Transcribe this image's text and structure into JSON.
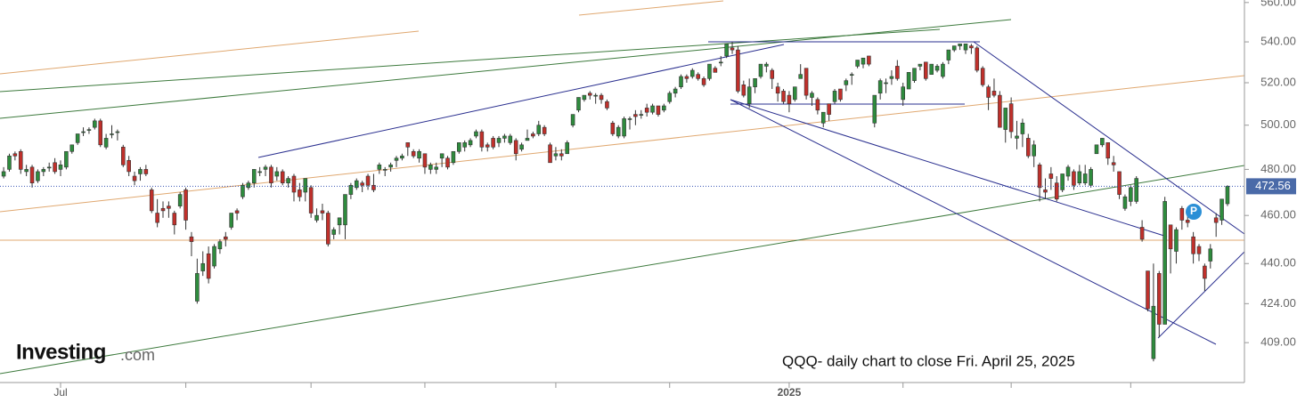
{
  "chart_data": {
    "type": "candlestick",
    "log_scale": true,
    "grid": false,
    "up_color": "#2e8b3d",
    "down_color": "#c0302b",
    "xlim": [
      -0.64,
      217.98
    ],
    "xticks": [
      {
        "value": 10,
        "label": "Jul"
      },
      32,
      54,
      74,
      97,
      117,
      {
        "value": 138,
        "label": "2025"
      },
      158,
      177,
      198
    ],
    "ylim": [
      394.2,
      561.3
    ],
    "yticks": [
      {
        "value": 560,
        "label": "560.00"
      },
      {
        "value": 540,
        "label": "540.00"
      },
      {
        "value": 520,
        "label": "520.00"
      },
      {
        "value": 500,
        "label": "500.00"
      },
      {
        "value": 480,
        "label": "480.00"
      },
      {
        "value": 460,
        "label": "460.00"
      },
      {
        "value": 440,
        "label": "440.00"
      },
      {
        "value": 424,
        "label": "424.00"
      },
      {
        "value": 409,
        "label": "409.00"
      }
    ],
    "last_price": 472.56,
    "annotation": "QQQ- daily chart to close Fri. April 25, 2025",
    "marker_label": "P",
    "brand": {
      "name": "Investing",
      "suffix": ".com"
    },
    "candles": [
      [
        477,
        481,
        476,
        479
      ],
      [
        480,
        487,
        479,
        486
      ],
      [
        487,
        488,
        484,
        486
      ],
      [
        488,
        489,
        478,
        480
      ],
      [
        479,
        482,
        477,
        480
      ],
      [
        481,
        482,
        472,
        474
      ],
      [
        475,
        480,
        474,
        479
      ],
      [
        479,
        481,
        477,
        480
      ],
      [
        481,
        483,
        479,
        481
      ],
      [
        483,
        485,
        478,
        479
      ],
      [
        480,
        484,
        477,
        482
      ],
      [
        481,
        488,
        480,
        488
      ],
      [
        488,
        491,
        487,
        491
      ],
      [
        492,
        496,
        491,
        496
      ],
      [
        497,
        499,
        495,
        497
      ],
      [
        498,
        499,
        496,
        498
      ],
      [
        499,
        503,
        498,
        502
      ],
      [
        502,
        503,
        490,
        491
      ],
      [
        490,
        496,
        489,
        494
      ],
      [
        496,
        500,
        494,
        496
      ],
      [
        497,
        498,
        493,
        497
      ],
      [
        490,
        491,
        481,
        482
      ],
      [
        484,
        486,
        477,
        479
      ],
      [
        477,
        479,
        473,
        475
      ],
      [
        478,
        481,
        475,
        480
      ],
      [
        480,
        482,
        477,
        478
      ],
      [
        471,
        472,
        461,
        462
      ],
      [
        461,
        467,
        455,
        457
      ],
      [
        463,
        466,
        459,
        462
      ],
      [
        464,
        466,
        459,
        463
      ],
      [
        461,
        462,
        452,
        456
      ],
      [
        464,
        470,
        463,
        469
      ],
      [
        471,
        472,
        454,
        458
      ],
      [
        451,
        453,
        443,
        449
      ],
      [
        425,
        442,
        424,
        436
      ],
      [
        437,
        445,
        435,
        440
      ],
      [
        444,
        447,
        432,
        434
      ],
      [
        439,
        448,
        438,
        447
      ],
      [
        446,
        450,
        444,
        449
      ],
      [
        451,
        453,
        447,
        450
      ],
      [
        455,
        461,
        454,
        461
      ],
      [
        462,
        463,
        458,
        461
      ],
      [
        468,
        474,
        467,
        473
      ],
      [
        472,
        475,
        471,
        474
      ],
      [
        474,
        480,
        472,
        480
      ],
      [
        479,
        481,
        477,
        479
      ],
      [
        480,
        482,
        477,
        481
      ],
      [
        481,
        482,
        472,
        474
      ],
      [
        477,
        481,
        475,
        479
      ],
      [
        479,
        480,
        473,
        474
      ],
      [
        474,
        477,
        472,
        476
      ],
      [
        477,
        478,
        466,
        470
      ],
      [
        471,
        474,
        466,
        468
      ],
      [
        470,
        476,
        466,
        476
      ],
      [
        472,
        473,
        459,
        461
      ],
      [
        458,
        463,
        457,
        460
      ],
      [
        462,
        465,
        458,
        461
      ],
      [
        461,
        462,
        447,
        448
      ],
      [
        452,
        455,
        450,
        454
      ],
      [
        456,
        459,
        452,
        459
      ],
      [
        456,
        469,
        450,
        469
      ],
      [
        469,
        474,
        467,
        473
      ],
      [
        472,
        476,
        471,
        475
      ],
      [
        474,
        475,
        470,
        473
      ],
      [
        477,
        478,
        471,
        473
      ],
      [
        473,
        478,
        470,
        471
      ],
      [
        480,
        483,
        478,
        482
      ],
      [
        480,
        481,
        477,
        480
      ],
      [
        481,
        483,
        479,
        482
      ],
      [
        484,
        486,
        481,
        485
      ],
      [
        485,
        487,
        484,
        486
      ],
      [
        492,
        492,
        486,
        490
      ],
      [
        488,
        489,
        485,
        486
      ],
      [
        485,
        489,
        483,
        488
      ],
      [
        487,
        487,
        478,
        481
      ],
      [
        480,
        483,
        478,
        482
      ],
      [
        480,
        483,
        478,
        481
      ],
      [
        485,
        487,
        481,
        487
      ],
      [
        485,
        486,
        480,
        481
      ],
      [
        483,
        488,
        482,
        488
      ],
      [
        488,
        492,
        487,
        492
      ],
      [
        490,
        493,
        488,
        492
      ],
      [
        491,
        494,
        490,
        493
      ],
      [
        495,
        498,
        494,
        497
      ],
      [
        497,
        498,
        488,
        490
      ],
      [
        491,
        492,
        488,
        490
      ],
      [
        494,
        495,
        489,
        490
      ],
      [
        492,
        495,
        490,
        494
      ],
      [
        494,
        496,
        492,
        495
      ],
      [
        492,
        496,
        491,
        495
      ],
      [
        493,
        494,
        484,
        487
      ],
      [
        489,
        492,
        488,
        491
      ],
      [
        493,
        498,
        493,
        494
      ],
      [
        496,
        497,
        494,
        495
      ],
      [
        496,
        502,
        495,
        500
      ],
      [
        499,
        500,
        495,
        496
      ],
      [
        491,
        492,
        483,
        483
      ],
      [
        486,
        490,
        484,
        487
      ],
      [
        487,
        489,
        484,
        486
      ],
      [
        487,
        493,
        487,
        492
      ],
      [
        500,
        505,
        499,
        505
      ],
      [
        507,
        513,
        506,
        513
      ],
      [
        512,
        514,
        511,
        514
      ],
      [
        515,
        516,
        512,
        514
      ],
      [
        514,
        515,
        510,
        514
      ],
      [
        514,
        515,
        510,
        512
      ],
      [
        511,
        512,
        507,
        508
      ],
      [
        501,
        502,
        495,
        496
      ],
      [
        495,
        500,
        494,
        499
      ],
      [
        495,
        504,
        494,
        503
      ],
      [
        503,
        504,
        498,
        503
      ],
      [
        505,
        507,
        500,
        504
      ],
      [
        505,
        507,
        503,
        505
      ],
      [
        508,
        510,
        504,
        506
      ],
      [
        506,
        510,
        505,
        509
      ],
      [
        509,
        509,
        504,
        505
      ],
      [
        507,
        510,
        506,
        509
      ],
      [
        511,
        516,
        510,
        515
      ],
      [
        515,
        518,
        513,
        517
      ],
      [
        518,
        524,
        517,
        523
      ],
      [
        523,
        524,
        520,
        522
      ],
      [
        523,
        527,
        522,
        526
      ],
      [
        524,
        525,
        521,
        522
      ],
      [
        522,
        523,
        518,
        519
      ],
      [
        522,
        529,
        521,
        529
      ],
      [
        527,
        528,
        525,
        525
      ],
      [
        530,
        533,
        528,
        530
      ],
      [
        533,
        539,
        532,
        539
      ],
      [
        537,
        540,
        534,
        536
      ],
      [
        536,
        538,
        515,
        516
      ],
      [
        519,
        521,
        513,
        514
      ],
      [
        510,
        522,
        508,
        518
      ],
      [
        518,
        522,
        515,
        522
      ],
      [
        523,
        529,
        522,
        529
      ],
      [
        528,
        530,
        525,
        529
      ],
      [
        526,
        527,
        517,
        522
      ],
      [
        518,
        520,
        511,
        515
      ],
      [
        516,
        517,
        510,
        511
      ],
      [
        514,
        516,
        506,
        510
      ],
      [
        512,
        518,
        511,
        518
      ],
      [
        522,
        529,
        522,
        524
      ],
      [
        527,
        527,
        512,
        514
      ],
      [
        513,
        516,
        509,
        515
      ],
      [
        512,
        513,
        505,
        507
      ],
      [
        501,
        506,
        499,
        506
      ],
      [
        510,
        510,
        502,
        505
      ],
      [
        511,
        517,
        510,
        516
      ],
      [
        517,
        517,
        511,
        512
      ],
      [
        519,
        522,
        516,
        521
      ],
      [
        524,
        525,
        519,
        524
      ],
      [
        528,
        531,
        527,
        531
      ],
      [
        529,
        532,
        527,
        532
      ],
      [
        533,
        533,
        528,
        529
      ],
      [
        501,
        514,
        499,
        514
      ],
      [
        515,
        522,
        512,
        521
      ],
      [
        520,
        522,
        515,
        520
      ],
      [
        522,
        526,
        519,
        523
      ],
      [
        528,
        531,
        521,
        522
      ],
      [
        512,
        520,
        509,
        518
      ],
      [
        517,
        525,
        517,
        525
      ],
      [
        521,
        527,
        520,
        527
      ],
      [
        528,
        529,
        526,
        529
      ],
      [
        530,
        530,
        521,
        522
      ],
      [
        524,
        529,
        524,
        529
      ],
      [
        526,
        529,
        525,
        528
      ],
      [
        523,
        530,
        522,
        529
      ],
      [
        531,
        536,
        529,
        536
      ],
      [
        536,
        538,
        535,
        538
      ],
      [
        538,
        539,
        536,
        539
      ],
      [
        536,
        539,
        534,
        539
      ],
      [
        538,
        539,
        534,
        537
      ],
      [
        537,
        538,
        525,
        526
      ],
      [
        527,
        528,
        518,
        519
      ],
      [
        518,
        519,
        507,
        513
      ],
      [
        516,
        522,
        513,
        514
      ],
      [
        514,
        516,
        499,
        499
      ],
      [
        498,
        508,
        492,
        508
      ],
      [
        510,
        513,
        494,
        497
      ],
      [
        494,
        502,
        489,
        495
      ],
      [
        496,
        503,
        490,
        501
      ],
      [
        494,
        496,
        485,
        486
      ],
      [
        486,
        493,
        481,
        491
      ],
      [
        482,
        483,
        466,
        472
      ],
      [
        471,
        476,
        467,
        470
      ],
      [
        478,
        481,
        471,
        476
      ],
      [
        474,
        477,
        466,
        467
      ],
      [
        471,
        478,
        470,
        478
      ],
      [
        477,
        482,
        475,
        481
      ],
      [
        479,
        480,
        471,
        473
      ],
      [
        474,
        482,
        473,
        479
      ],
      [
        474,
        482,
        473,
        478
      ],
      [
        473,
        481,
        472,
        480
      ],
      [
        487,
        491,
        487,
        491
      ],
      [
        491,
        494,
        490,
        494
      ],
      [
        492,
        492,
        482,
        485
      ],
      [
        483,
        486,
        479,
        482
      ],
      [
        479,
        479,
        467,
        469
      ],
      [
        463,
        469,
        462,
        468
      ],
      [
        466,
        473,
        464,
        472
      ],
      [
        466,
        477,
        465,
        476
      ],
      [
        455,
        458,
        449,
        450
      ],
      [
        437,
        437,
        421,
        422
      ],
      [
        403,
        440,
        402,
        423
      ],
      [
        436,
        437,
        411,
        416
      ],
      [
        416,
        468,
        416,
        466
      ],
      [
        456,
        456,
        436,
        446
      ],
      [
        445,
        455,
        440,
        454
      ],
      [
        463,
        464,
        454,
        458
      ],
      [
        458,
        461,
        455,
        457
      ],
      [
        451,
        453,
        440,
        444
      ],
      [
        447,
        448,
        441,
        444
      ],
      [
        439,
        440,
        429,
        434
      ],
      [
        441,
        448,
        438,
        446
      ],
      [
        459,
        461,
        451,
        457
      ],
      [
        458,
        467,
        456,
        467
      ],
      [
        465,
        473,
        464,
        472.56
      ]
    ]
  }
}
